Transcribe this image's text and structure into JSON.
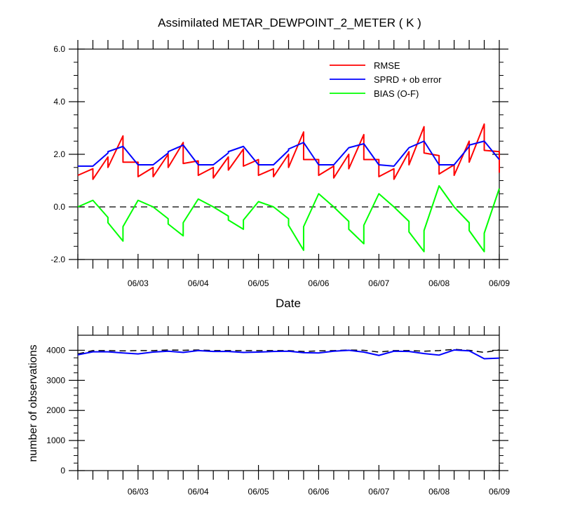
{
  "chart_data": [
    {
      "type": "line",
      "title": "Assimilated METAR_DEWPOINT_2_METER ( K )",
      "xlabel": "Date",
      "ylabel": "",
      "ylim": [
        -2.0,
        6.0
      ],
      "xlim": [
        "06/02 06:00",
        "06/09 06:00"
      ],
      "yticks": [
        "-2.0",
        "0.0",
        "2.0",
        "4.0",
        "6.0"
      ],
      "xtick_labels": [
        "06/03",
        "06/04",
        "06/05",
        "06/06",
        "06/07",
        "06/08",
        "06/09"
      ],
      "zero_line": "dashed",
      "grid": false,
      "legend_position": "top-right",
      "colors": {
        "rmse": "#ff0000",
        "spread": "#0000ff",
        "bias": "#00ff00"
      },
      "series": [
        {
          "name": "RMSE",
          "color": "#ff0000",
          "x": [
            "06/02 06:00",
            "06/02 12:00",
            "06/02 12:00",
            "06/02 18:00",
            "06/02 18:00",
            "06/03 00:00",
            "06/03 00:00",
            "06/03 06:00",
            "06/03 06:00",
            "06/03 12:00",
            "06/03 12:00",
            "06/03 18:00",
            "06/03 18:00",
            "06/04 00:00",
            "06/04 00:00",
            "06/04 06:00",
            "06/04 06:00",
            "06/04 12:00",
            "06/04 12:00",
            "06/04 18:00",
            "06/04 18:00",
            "06/05 00:00",
            "06/05 00:00",
            "06/05 06:00",
            "06/05 06:00",
            "06/05 12:00",
            "06/05 12:00",
            "06/05 18:00",
            "06/05 18:00",
            "06/06 00:00",
            "06/06 00:00",
            "06/06 06:00",
            "06/06 06:00",
            "06/06 12:00",
            "06/06 12:00",
            "06/06 18:00",
            "06/06 18:00",
            "06/07 00:00",
            "06/07 00:00",
            "06/07 06:00",
            "06/07 06:00",
            "06/07 12:00",
            "06/07 12:00",
            "06/07 18:00",
            "06/07 18:00",
            "06/08 00:00",
            "06/08 00:00",
            "06/08 06:00",
            "06/08 06:00",
            "06/08 12:00",
            "06/08 12:00",
            "06/08 18:00",
            "06/08 18:00",
            "06/09 00:00",
            "06/09 00:00",
            "06/09 06:00",
            "06/09 06:00"
          ],
          "values": [
            1.2,
            1.45,
            1.05,
            1.9,
            1.5,
            2.7,
            1.7,
            1.7,
            1.15,
            1.5,
            1.15,
            2.0,
            1.5,
            2.45,
            1.65,
            1.75,
            1.2,
            1.5,
            1.1,
            1.9,
            1.4,
            2.2,
            1.55,
            1.8,
            1.2,
            1.45,
            1.15,
            2.0,
            1.5,
            2.85,
            1.8,
            1.8,
            1.2,
            1.55,
            1.1,
            2.0,
            1.45,
            2.75,
            1.8,
            1.8,
            1.15,
            1.45,
            1.05,
            2.1,
            1.6,
            3.05,
            2.05,
            1.95,
            1.25,
            1.6,
            1.2,
            2.5,
            1.7,
            3.15,
            2.15,
            2.1,
            1.3
          ]
        },
        {
          "name": "SPRD + ob error",
          "color": "#0000ff",
          "x": [
            "06/02 06:00",
            "06/02 12:00",
            "06/02 18:00",
            "06/02 18:00",
            "06/03 00:00",
            "06/03 06:00",
            "06/03 12:00",
            "06/03 18:00",
            "06/03 18:00",
            "06/04 00:00",
            "06/04 06:00",
            "06/04 12:00",
            "06/04 18:00",
            "06/04 18:00",
            "06/05 00:00",
            "06/05 06:00",
            "06/05 12:00",
            "06/05 18:00",
            "06/05 18:00",
            "06/06 00:00",
            "06/06 06:00",
            "06/06 12:00",
            "06/06 18:00",
            "06/06 18:00",
            "06/07 00:00",
            "06/07 06:00",
            "06/07 12:00",
            "06/07 18:00",
            "06/07 18:00",
            "06/08 00:00",
            "06/08 06:00",
            "06/08 12:00",
            "06/08 18:00",
            "06/08 18:00",
            "06/09 00:00",
            "06/09 06:00"
          ],
          "values": [
            1.55,
            1.55,
            2.05,
            2.1,
            2.3,
            1.6,
            1.6,
            2.05,
            2.1,
            2.35,
            1.6,
            1.6,
            2.05,
            2.1,
            2.3,
            1.6,
            1.6,
            2.15,
            2.2,
            2.45,
            1.6,
            1.6,
            2.25,
            2.25,
            2.4,
            1.6,
            1.55,
            2.25,
            2.25,
            2.5,
            1.6,
            1.6,
            2.3,
            2.35,
            2.5,
            1.8
          ]
        },
        {
          "name": "BIAS (O-F)",
          "color": "#00ff00",
          "x": [
            "06/02 06:00",
            "06/02 12:00",
            "06/02 18:00",
            "06/02 18:00",
            "06/03 00:00",
            "06/03 00:00",
            "06/03 06:00",
            "06/03 12:00",
            "06/03 18:00",
            "06/03 18:00",
            "06/04 00:00",
            "06/04 00:00",
            "06/04 06:00",
            "06/04 12:00",
            "06/04 18:00",
            "06/04 18:00",
            "06/05 00:00",
            "06/05 00:00",
            "06/05 06:00",
            "06/05 12:00",
            "06/05 18:00",
            "06/05 18:00",
            "06/06 00:00",
            "06/06 00:00",
            "06/06 06:00",
            "06/06 12:00",
            "06/06 18:00",
            "06/06 18:00",
            "06/07 00:00",
            "06/07 00:00",
            "06/07 06:00",
            "06/07 12:00",
            "06/07 18:00",
            "06/07 18:00",
            "06/08 00:00",
            "06/08 00:00",
            "06/08 06:00",
            "06/08 12:00",
            "06/08 18:00",
            "06/08 18:00",
            "06/09 00:00",
            "06/09 00:00",
            "06/09 06:00"
          ],
          "values": [
            0.0,
            0.25,
            -0.4,
            -0.6,
            -1.3,
            -0.75,
            0.25,
            0.0,
            -0.45,
            -0.65,
            -1.1,
            -0.6,
            0.3,
            0.0,
            -0.35,
            -0.5,
            -0.85,
            -0.5,
            0.2,
            0.0,
            -0.45,
            -0.7,
            -1.65,
            -0.75,
            0.5,
            0.0,
            -0.55,
            -0.85,
            -1.4,
            -0.7,
            0.5,
            0.0,
            -0.55,
            -0.95,
            -1.7,
            -0.9,
            0.8,
            0.0,
            -0.6,
            -0.9,
            -1.7,
            -1.0,
            0.7
          ]
        }
      ]
    },
    {
      "type": "line",
      "title": "",
      "xlabel": "",
      "ylabel": "number of observations",
      "ylim": [
        0,
        4500
      ],
      "xlim": [
        "06/02 06:00",
        "06/09 06:00"
      ],
      "yticks": [
        "0",
        "1000",
        "2000",
        "3000",
        "4000"
      ],
      "xtick_labels": [
        "06/03",
        "06/04",
        "06/05",
        "06/06",
        "06/07",
        "06/08",
        "06/09"
      ],
      "grid": false,
      "series": [
        {
          "style": "dashed",
          "color": "#000000",
          "x": [
            "06/02 06:00",
            "06/02 12:00",
            "06/02 18:00",
            "06/03 00:00",
            "06/03 06:00",
            "06/03 12:00",
            "06/03 18:00",
            "06/04 00:00",
            "06/04 06:00",
            "06/04 12:00",
            "06/04 18:00",
            "06/05 00:00",
            "06/05 06:00",
            "06/05 12:00",
            "06/05 18:00",
            "06/06 00:00",
            "06/06 06:00",
            "06/06 12:00",
            "06/06 18:00",
            "06/07 00:00",
            "06/07 06:00",
            "06/07 12:00",
            "06/07 18:00",
            "06/08 00:00",
            "06/08 06:00",
            "06/08 12:00",
            "06/08 18:00",
            "06/09 00:00",
            "06/09 06:00"
          ],
          "values": [
            3880,
            3990,
            3990,
            3980,
            3990,
            3990,
            4010,
            4000,
            4010,
            3990,
            3990,
            3990,
            3990,
            3990,
            3990,
            3960,
            3980,
            3990,
            4010,
            4000,
            3940,
            3990,
            3990,
            3970,
            3990,
            4030,
            4000,
            3930,
            4010
          ]
        },
        {
          "style": "solid",
          "color": "#0000ff",
          "x": [
            "06/02 06:00",
            "06/02 12:00",
            "06/02 18:00",
            "06/03 00:00",
            "06/03 06:00",
            "06/03 12:00",
            "06/03 18:00",
            "06/04 00:00",
            "06/04 06:00",
            "06/04 12:00",
            "06/04 18:00",
            "06/05 00:00",
            "06/05 06:00",
            "06/05 12:00",
            "06/05 18:00",
            "06/06 00:00",
            "06/06 06:00",
            "06/06 12:00",
            "06/06 18:00",
            "06/07 00:00",
            "06/07 06:00",
            "06/07 12:00",
            "06/07 18:00",
            "06/08 00:00",
            "06/08 06:00",
            "06/08 12:00",
            "06/08 18:00",
            "06/09 00:00",
            "06/09 06:00"
          ],
          "values": [
            3850,
            3950,
            3950,
            3910,
            3880,
            3940,
            3970,
            3930,
            3990,
            3960,
            3960,
            3930,
            3940,
            3960,
            3970,
            3920,
            3910,
            3970,
            4000,
            3940,
            3830,
            3970,
            3960,
            3890,
            3840,
            4010,
            3980,
            3720,
            3740
          ]
        }
      ]
    }
  ]
}
